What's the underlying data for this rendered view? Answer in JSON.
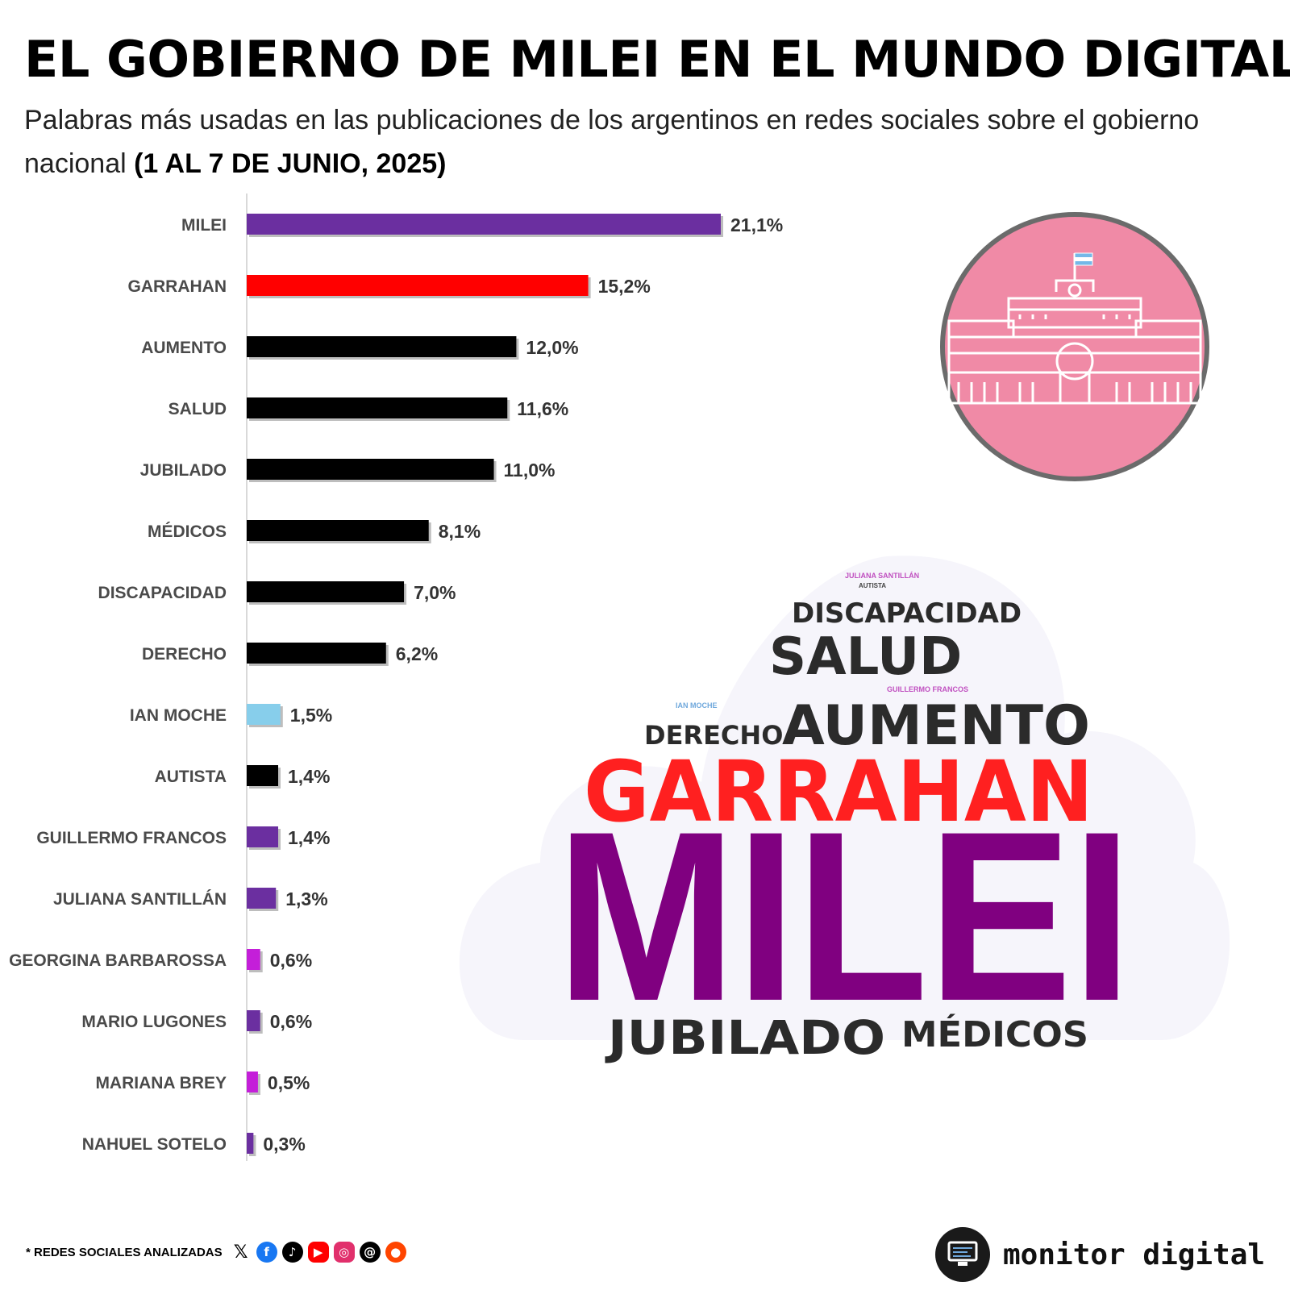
{
  "header": {
    "title": "EL GOBIERNO DE MILEI EN EL MUNDO DIGITAL",
    "subtitle_main": "Palabras más usadas en las publicaciones de los argentinos en redes sociales sobre el gobierno nacional ",
    "subtitle_date": "(1 AL 7 DE JUNIO, 2025)"
  },
  "colors": {
    "milei": "#6b2fa0",
    "garrahan": "#ff0000",
    "default": "#000000",
    "ian_moche": "#87ceeb",
    "magenta": "#c41fd9",
    "badge_pink": "#f08aa6",
    "wc_purple": "#800080",
    "wc_red": "#ff2020",
    "wc_dark": "#2b2b2b"
  },
  "chart_data": {
    "type": "bar",
    "orientation": "horizontal",
    "title": "Palabras más usadas en las publicaciones de los argentinos en redes sociales sobre el gobierno nacional",
    "unit": "%",
    "categories": [
      "MILEI",
      "GARRAHAN",
      "AUMENTO",
      "SALUD",
      "JUBILADO",
      "MÉDICOS",
      "DISCAPACIDAD",
      "DERECHO",
      "IAN MOCHE",
      "AUTISTA",
      "GUILLERMO FRANCOS",
      "JULIANA SANTILLÁN",
      "GEORGINA BARBAROSSA",
      "MARIO LUGONES",
      "MARIANA BREY",
      "NAHUEL SOTELO"
    ],
    "values": [
      21.1,
      15.2,
      12.0,
      11.6,
      11.0,
      8.1,
      7.0,
      6.2,
      1.5,
      1.4,
      1.4,
      1.3,
      0.6,
      0.6,
      0.5,
      0.3
    ],
    "value_labels": [
      "21,1%",
      "15,2%",
      "12,0%",
      "11,6%",
      "11,0%",
      "8,1%",
      "7,0%",
      "6,2%",
      "1,5%",
      "1,4%",
      "1,4%",
      "1,3%",
      "0,6%",
      "0,6%",
      "0,5%",
      "0,3%"
    ],
    "bar_colors": [
      "#6b2fa0",
      "#ff0000",
      "#000000",
      "#000000",
      "#000000",
      "#000000",
      "#000000",
      "#000000",
      "#87ceeb",
      "#000000",
      "#6b2fa0",
      "#6b2fa0",
      "#c41fd9",
      "#6b2fa0",
      "#c41fd9",
      "#6b2fa0"
    ],
    "xlim": [
      0,
      21.1
    ],
    "grid": false
  },
  "wordcloud": {
    "words": [
      "MILEI",
      "GARRAHAN",
      "AUMENTO",
      "DERECHO",
      "SALUD",
      "DISCAPACIDAD",
      "JUBILADO",
      "MÉDICOS",
      "JULIANA SANTILLÁN",
      "AUTISTA",
      "IAN MOCHE",
      "GUILLERMO FRANCOS"
    ]
  },
  "footer": {
    "social_label": "* REDES SOCIALES ANALIZADAS",
    "social_icons": [
      "x-icon",
      "facebook-icon",
      "tiktok-icon",
      "youtube-icon",
      "instagram-icon",
      "threads-icon",
      "reddit-icon"
    ],
    "brand": "monitor digital"
  }
}
